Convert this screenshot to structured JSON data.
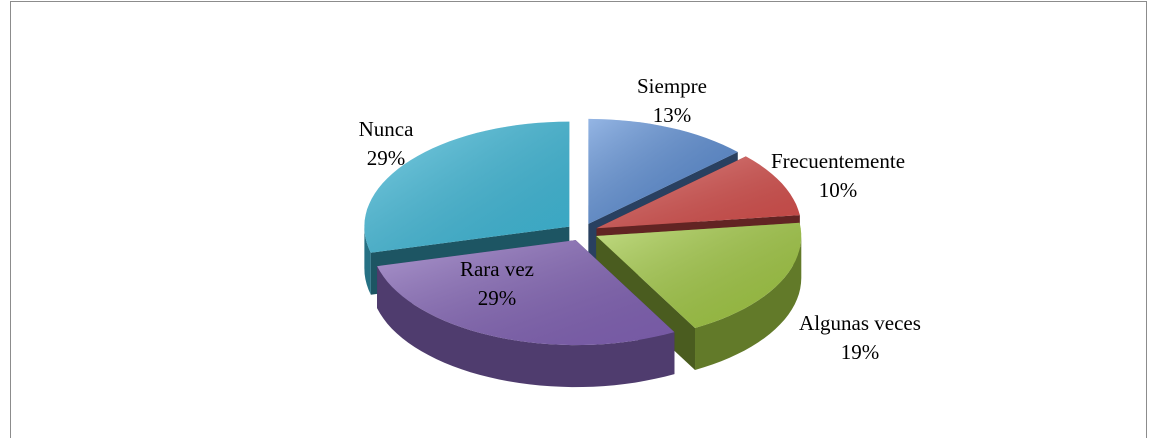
{
  "chart_data": {
    "type": "pie3d",
    "categories": [
      "Siempre",
      "Frecuentemente",
      "Algunas veces",
      "Rara vez",
      "Nunca"
    ],
    "values": [
      13,
      10,
      19,
      29,
      29
    ],
    "value_labels": [
      "13%",
      "10%",
      "19%",
      "29%",
      "29%"
    ],
    "colors": [
      "#5b8ed6",
      "#d9514e",
      "#a4cc44",
      "#8464b8",
      "#40bcdc"
    ]
  }
}
